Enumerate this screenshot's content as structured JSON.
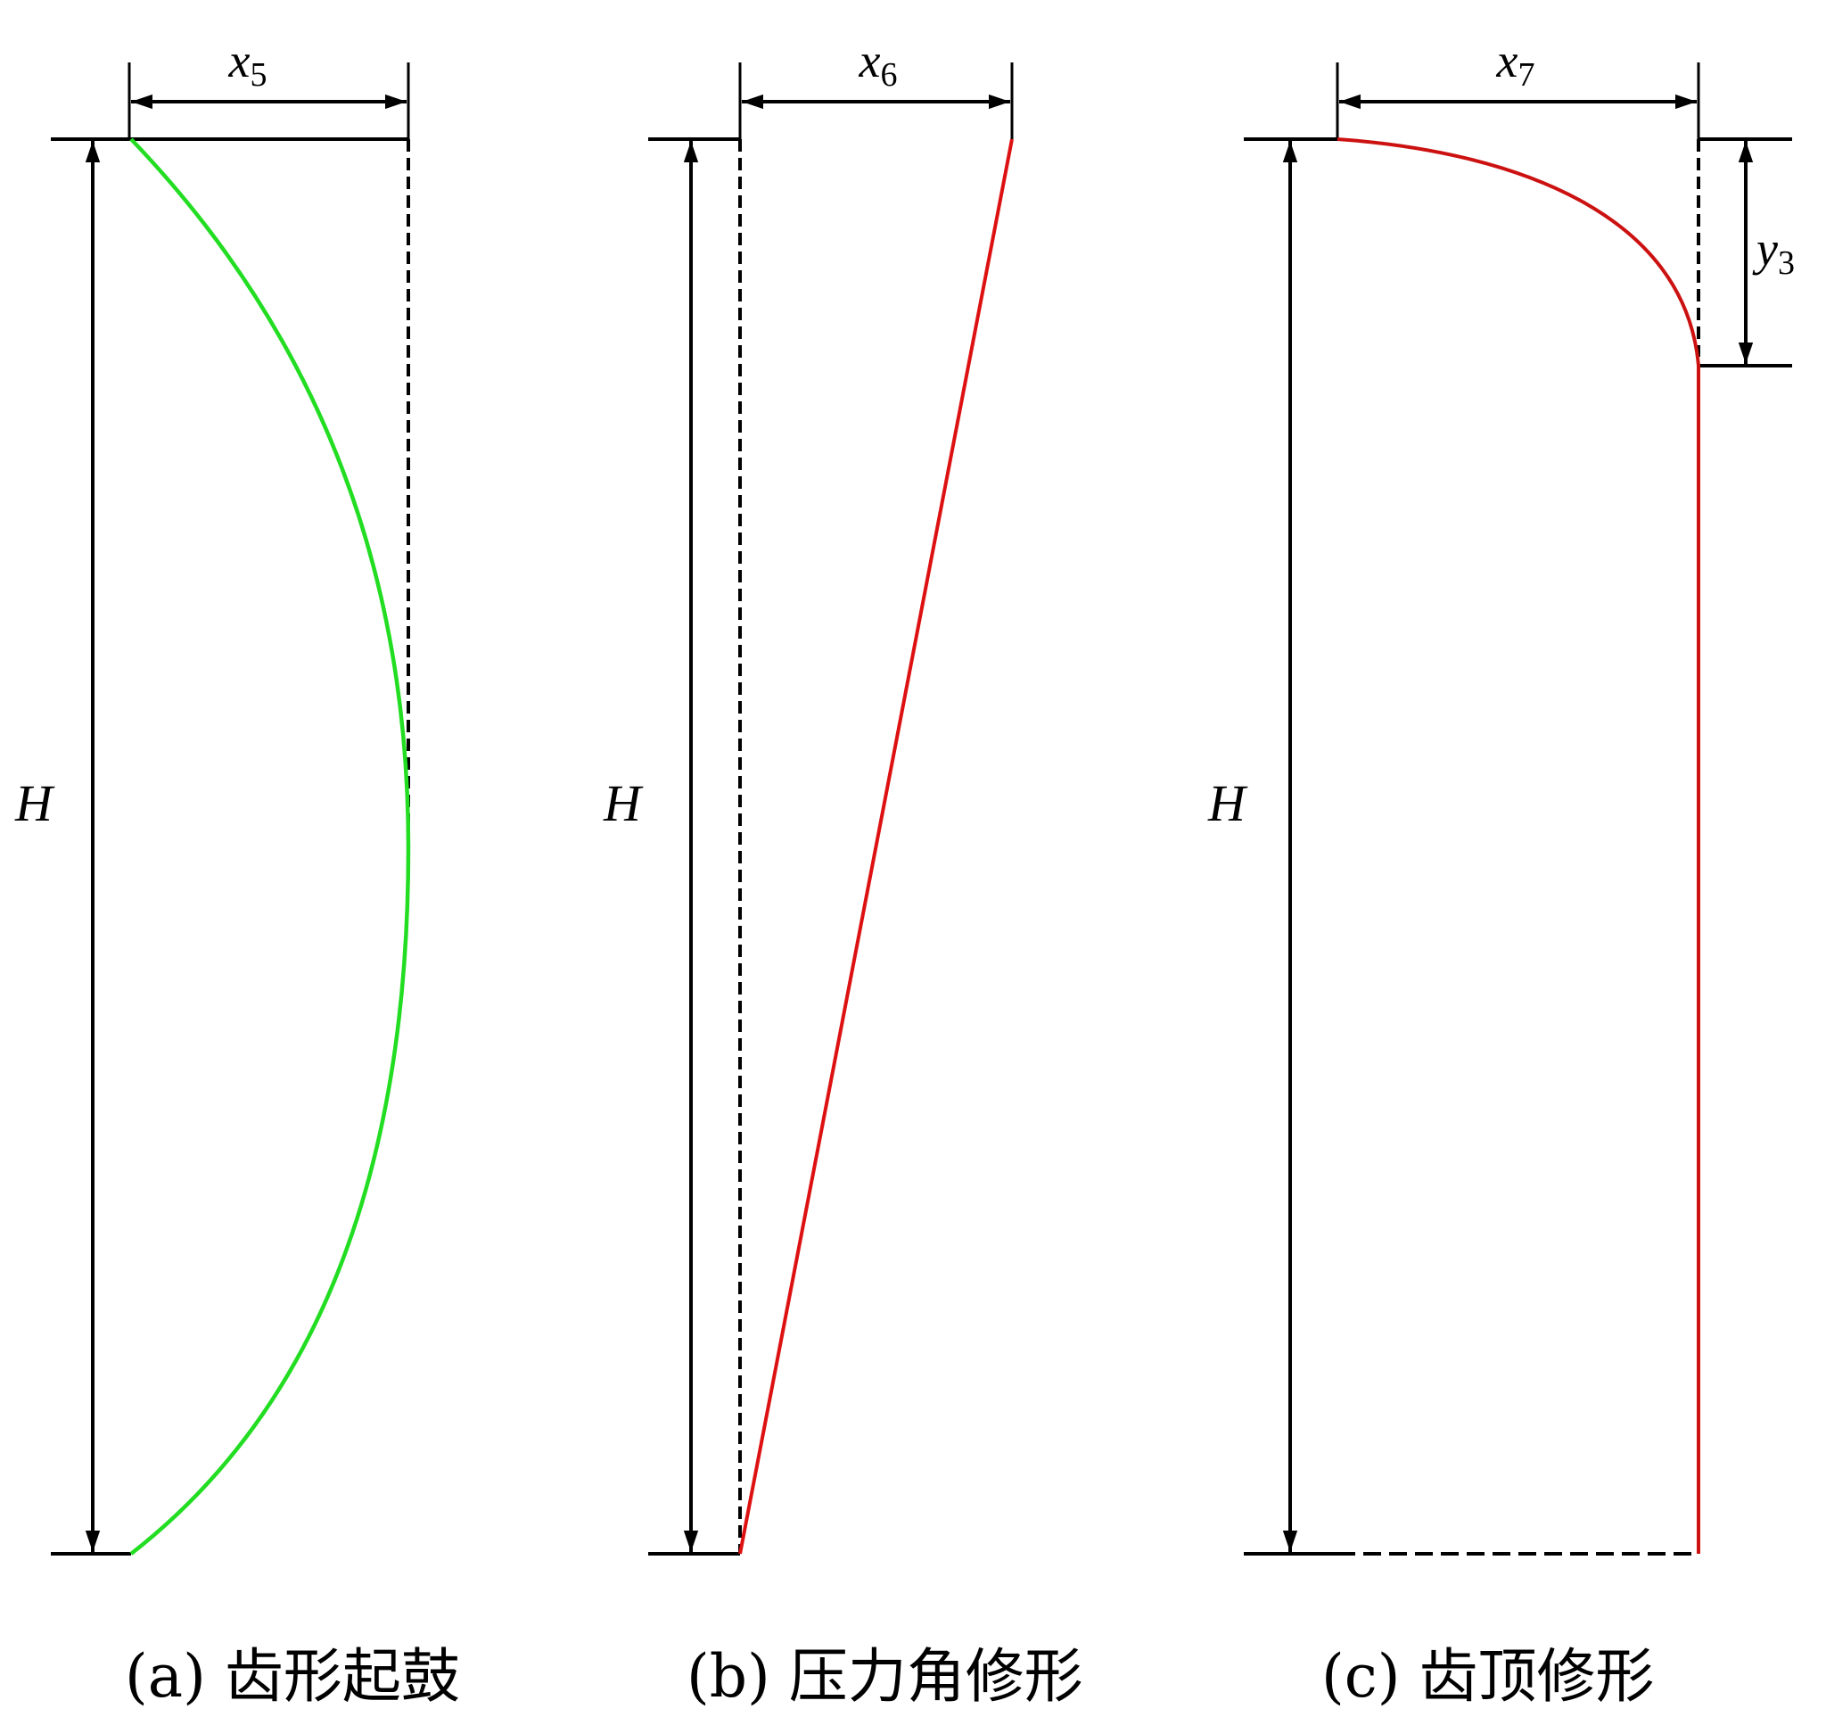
{
  "panels": [
    {
      "caption": "(a) 齿形起鼓",
      "width_label": {
        "var": "x",
        "sub": "5"
      },
      "height_label": "H",
      "curve_color": "#22dd22",
      "curve_shape": "convex arc, tangent to reference line at mid-height"
    },
    {
      "caption": "(b) 压力角修形",
      "width_label": {
        "var": "x",
        "sub": "6"
      },
      "height_label": "H",
      "curve_color": "#dd1111",
      "curve_shape": "straight slant line"
    },
    {
      "caption": "(c) 齿顶修形",
      "width_label": {
        "var": "x",
        "sub": "7"
      },
      "height_label": "H",
      "tip_label": {
        "var": "y",
        "sub": "3"
      },
      "curve_color": "#cc1111",
      "curve_shape": "tip relief curve then vertical line"
    }
  ]
}
